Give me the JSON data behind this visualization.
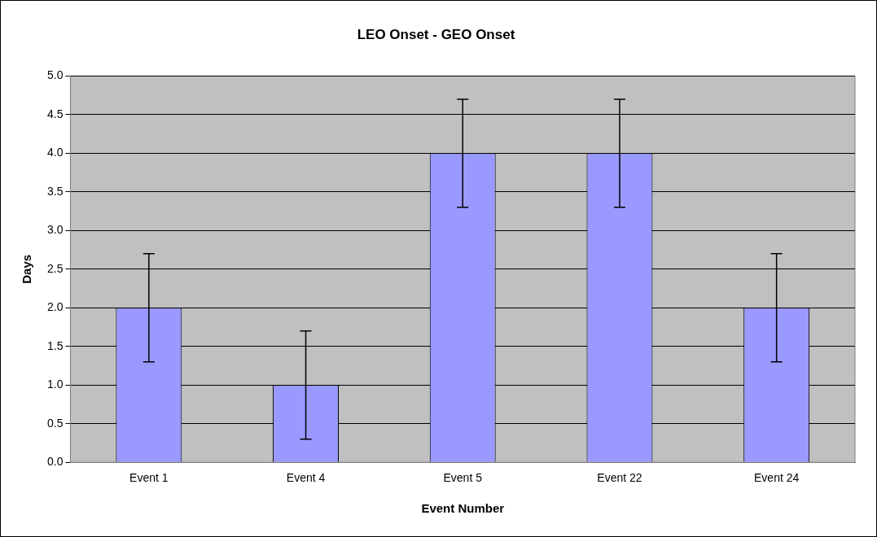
{
  "chart_data": {
    "type": "bar",
    "title": "LEO Onset - GEO Onset",
    "xlabel": "Event Number",
    "ylabel": "Days",
    "categories": [
      "Event 1",
      "Event 4",
      "Event 5",
      "Event 22",
      "Event 24"
    ],
    "values": [
      2,
      1,
      4,
      4,
      2
    ],
    "errors": [
      0.7,
      0.7,
      0.7,
      0.7,
      0.7
    ],
    "color": "#9999ff",
    "ylim": [
      0,
      5
    ],
    "yticks": [
      {
        "value": 0,
        "label": "0.0"
      },
      {
        "value": 0.5,
        "label": "0.5"
      },
      {
        "value": 1,
        "label": "1.0"
      },
      {
        "value": 1.5,
        "label": "1.5"
      },
      {
        "value": 2,
        "label": "2.0"
      },
      {
        "value": 2.5,
        "label": "2.5"
      },
      {
        "value": 3,
        "label": "3.0"
      },
      {
        "value": 3.5,
        "label": "3.5"
      },
      {
        "value": 4,
        "label": "4.0"
      },
      {
        "value": 4.5,
        "label": "4.5"
      },
      {
        "value": 5,
        "label": "5.0"
      }
    ],
    "grid": "y",
    "legend": false
  }
}
